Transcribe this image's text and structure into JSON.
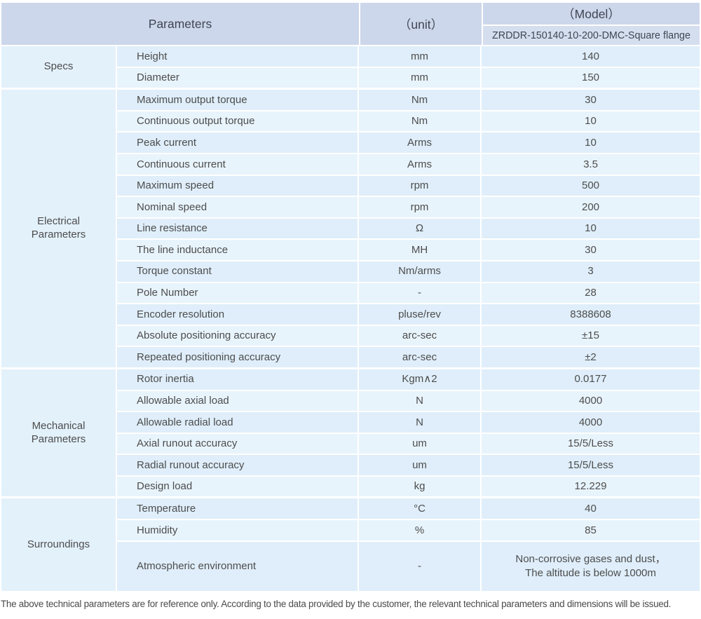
{
  "header": {
    "parameters_label": "Parameters",
    "unit_label": "（unit）",
    "model_label": "（Model）",
    "model_value": "ZRDDR-150140-10-200-DMC-Square flange"
  },
  "groups": [
    {
      "label": "Specs",
      "rows": [
        {
          "param": "Height",
          "unit": "mm",
          "value": "140"
        },
        {
          "param": "Diameter",
          "unit": "mm",
          "value": "150"
        }
      ]
    },
    {
      "label": "Electrical\nParameters",
      "rows": [
        {
          "param": "Maximum output torque",
          "unit": "Nm",
          "value": "30"
        },
        {
          "param": "Continuous output torque",
          "unit": "Nm",
          "value": "10"
        },
        {
          "param": "Peak current",
          "unit": "Arms",
          "value": "10"
        },
        {
          "param": "Continuous current",
          "unit": "Arms",
          "value": "3.5"
        },
        {
          "param": "Maximum speed",
          "unit": "rpm",
          "value": "500"
        },
        {
          "param": "Nominal speed",
          "unit": "rpm",
          "value": "200"
        },
        {
          "param": "Line resistance",
          "unit": "Ω",
          "value": "10"
        },
        {
          "param": "The line inductance",
          "unit": "MH",
          "value": "30"
        },
        {
          "param": "Torque constant",
          "unit": "Nm/arms",
          "value": "3"
        },
        {
          "param": "Pole Number",
          "unit": "-",
          "value": "28"
        },
        {
          "param": "Encoder resolution",
          "unit": "pluse/rev",
          "value": "8388608"
        },
        {
          "param": "Absolute positioning accuracy",
          "unit": "arc-sec",
          "value": "±15"
        },
        {
          "param": "Repeated positioning accuracy",
          "unit": "arc-sec",
          "value": "±2"
        }
      ]
    },
    {
      "label": "Mechanical\nParameters",
      "rows": [
        {
          "param": "Rotor inertia",
          "unit": "Kgm∧2",
          "value": "0.0177"
        },
        {
          "param": "Allowable axial load",
          "unit": "N",
          "value": "4000"
        },
        {
          "param": "Allowable radial load",
          "unit": "N",
          "value": "4000"
        },
        {
          "param": "Axial runout accuracy",
          "unit": "um",
          "value": "15/5/Less"
        },
        {
          "param": "Radial runout accuracy",
          "unit": "um",
          "value": "15/5/Less"
        },
        {
          "param": "Design load",
          "unit": "kg",
          "value": "12.229"
        }
      ]
    },
    {
      "label": "Surroundings",
      "rows": [
        {
          "param": "Temperature",
          "unit": "°C",
          "value": "40"
        },
        {
          "param": "Humidity",
          "unit": "%",
          "value": "85"
        },
        {
          "param": "Atmospheric environment",
          "unit": "-",
          "value": "Non-corrosive gases and dust，\nThe altitude is below 1000m"
        }
      ]
    }
  ],
  "footer": {
    "note": "The above technical parameters are for reference only. According to the data provided by the customer, the relevant technical parameters and dimensions will be issued."
  },
  "colors": {
    "header_bg": "#cdd7eb",
    "model_bg": "#d5deef",
    "group_bg": "#e3f1fb",
    "row_odd": "#dfeefa",
    "row_even": "#e8f4fc",
    "text": "#4d4d4d",
    "header_text": "#3f4654"
  }
}
